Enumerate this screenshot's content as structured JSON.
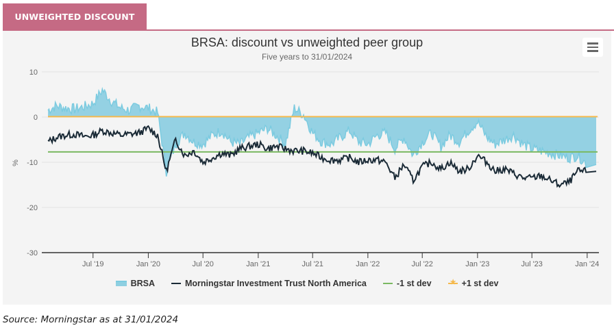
{
  "tab": {
    "label": "UNWEIGHTED DISCOUNT"
  },
  "menu": {
    "icon": "hamburger-menu-icon"
  },
  "source": "Source: Morningstar as at 31/01/2024",
  "colors": {
    "tab": "#c56a84",
    "brsa_fill": "#8ecfe1",
    "brsa_line": "#7ccbe0",
    "peer": "#1a2a36",
    "minus_sd": "#7ab861",
    "plus_sd": "#f5b94d"
  },
  "chart_data": {
    "type": "area",
    "title": "BRSA: discount vs unweighted peer group",
    "subtitle": "Five years to 31/01/2024",
    "xlabel": "",
    "ylabel": "%",
    "x_range": [
      "2019-02-01",
      "2024-01-31"
    ],
    "ylim": [
      -30,
      10
    ],
    "yticks": [
      10,
      0,
      -10,
      -20,
      -30
    ],
    "xticks": [
      {
        "date": "2019-07-01",
        "label": "Jul '19"
      },
      {
        "date": "2020-01-01",
        "label": "Jan '20"
      },
      {
        "date": "2020-07-01",
        "label": "Jul '20"
      },
      {
        "date": "2021-01-01",
        "label": "Jan '21"
      },
      {
        "date": "2021-07-01",
        "label": "Jul '21"
      },
      {
        "date": "2022-01-01",
        "label": "Jan '22"
      },
      {
        "date": "2022-07-01",
        "label": "Jul '22"
      },
      {
        "date": "2023-01-01",
        "label": "Jan '23"
      },
      {
        "date": "2023-07-01",
        "label": "Jul '23"
      },
      {
        "date": "2024-01-01",
        "label": "Jan '24"
      }
    ],
    "grid": true,
    "legend_position": "bottom-center",
    "series": [
      {
        "name": "BRSA",
        "kind": "area",
        "x": [
          "2019-02",
          "2019-03",
          "2019-04",
          "2019-05",
          "2019-06",
          "2019-07",
          "2019-08",
          "2019-09",
          "2019-10",
          "2019-11",
          "2019-12",
          "2020-01",
          "2020-02",
          "2020-03",
          "2020-04",
          "2020-05",
          "2020-06",
          "2020-07",
          "2020-08",
          "2020-09",
          "2020-10",
          "2020-11",
          "2020-12",
          "2021-01",
          "2021-02",
          "2021-03",
          "2021-04",
          "2021-05",
          "2021-06",
          "2021-07",
          "2021-08",
          "2021-09",
          "2021-10",
          "2021-11",
          "2021-12",
          "2022-01",
          "2022-02",
          "2022-03",
          "2022-04",
          "2022-05",
          "2022-06",
          "2022-07",
          "2022-08",
          "2022-09",
          "2022-10",
          "2022-11",
          "2022-12",
          "2023-01",
          "2023-02",
          "2023-03",
          "2023-04",
          "2023-05",
          "2023-06",
          "2023-07",
          "2023-08",
          "2023-09",
          "2023-10",
          "2023-11",
          "2023-12",
          "2024-01"
        ],
        "values": [
          1.5,
          2.5,
          2.0,
          1.8,
          2.3,
          3.0,
          6.0,
          3.5,
          2.0,
          1.5,
          2.5,
          2.0,
          1.0,
          -12.0,
          -6.0,
          -3.5,
          -5.5,
          -6.0,
          -4.0,
          -3.0,
          -5.5,
          -6.0,
          -4.5,
          -3.5,
          -2.5,
          -4.0,
          -6.0,
          2.0,
          0.5,
          -3.5,
          -5.5,
          -6.0,
          -4.5,
          -3.0,
          -5.5,
          -6.0,
          -4.0,
          -3.5,
          -7.0,
          -4.5,
          -8.5,
          -5.5,
          -3.5,
          -6.5,
          -4.0,
          -5.5,
          -3.0,
          -1.0,
          -4.5,
          -6.0,
          -5.0,
          -4.0,
          -6.0,
          -7.0,
          -7.5,
          -8.0,
          -8.5,
          -9.0,
          -8.5,
          -10.5
        ]
      },
      {
        "name": "Morningstar Investment Trust North America",
        "kind": "line",
        "x": [
          "2019-02",
          "2019-03",
          "2019-04",
          "2019-05",
          "2019-06",
          "2019-07",
          "2019-08",
          "2019-09",
          "2019-10",
          "2019-11",
          "2019-12",
          "2020-01",
          "2020-02",
          "2020-03",
          "2020-04",
          "2020-05",
          "2020-06",
          "2020-07",
          "2020-08",
          "2020-09",
          "2020-10",
          "2020-11",
          "2020-12",
          "2021-01",
          "2021-02",
          "2021-03",
          "2021-04",
          "2021-05",
          "2021-06",
          "2021-07",
          "2021-08",
          "2021-09",
          "2021-10",
          "2021-11",
          "2021-12",
          "2022-01",
          "2022-02",
          "2022-03",
          "2022-04",
          "2022-05",
          "2022-06",
          "2022-07",
          "2022-08",
          "2022-09",
          "2022-10",
          "2022-11",
          "2022-12",
          "2023-01",
          "2023-02",
          "2023-03",
          "2023-04",
          "2023-05",
          "2023-06",
          "2023-07",
          "2023-08",
          "2023-09",
          "2023-10",
          "2023-11",
          "2023-12",
          "2024-01"
        ],
        "values": [
          -5.5,
          -4.5,
          -4.0,
          -3.8,
          -4.3,
          -4.0,
          -3.0,
          -3.5,
          -4.0,
          -3.8,
          -3.5,
          -2.5,
          -4.0,
          -12.0,
          -5.0,
          -8.5,
          -7.5,
          -10.0,
          -9.0,
          -8.0,
          -8.5,
          -7.0,
          -6.5,
          -6.0,
          -7.0,
          -6.5,
          -7.0,
          -7.5,
          -7.5,
          -8.0,
          -9.0,
          -9.5,
          -9.5,
          -9.0,
          -10.0,
          -9.5,
          -9.5,
          -10.0,
          -13.5,
          -10.5,
          -14.0,
          -11.0,
          -10.0,
          -11.5,
          -10.0,
          -12.0,
          -11.5,
          -8.5,
          -10.0,
          -12.0,
          -11.5,
          -12.5,
          -13.5,
          -13.5,
          -13.0,
          -14.0,
          -15.0,
          -14.5,
          -12.0,
          -12.0
        ]
      },
      {
        "name": "-1 st dev",
        "kind": "line",
        "value": -7.7
      },
      {
        "name": "+1 st dev",
        "kind": "line",
        "value": 0.1
      }
    ]
  }
}
